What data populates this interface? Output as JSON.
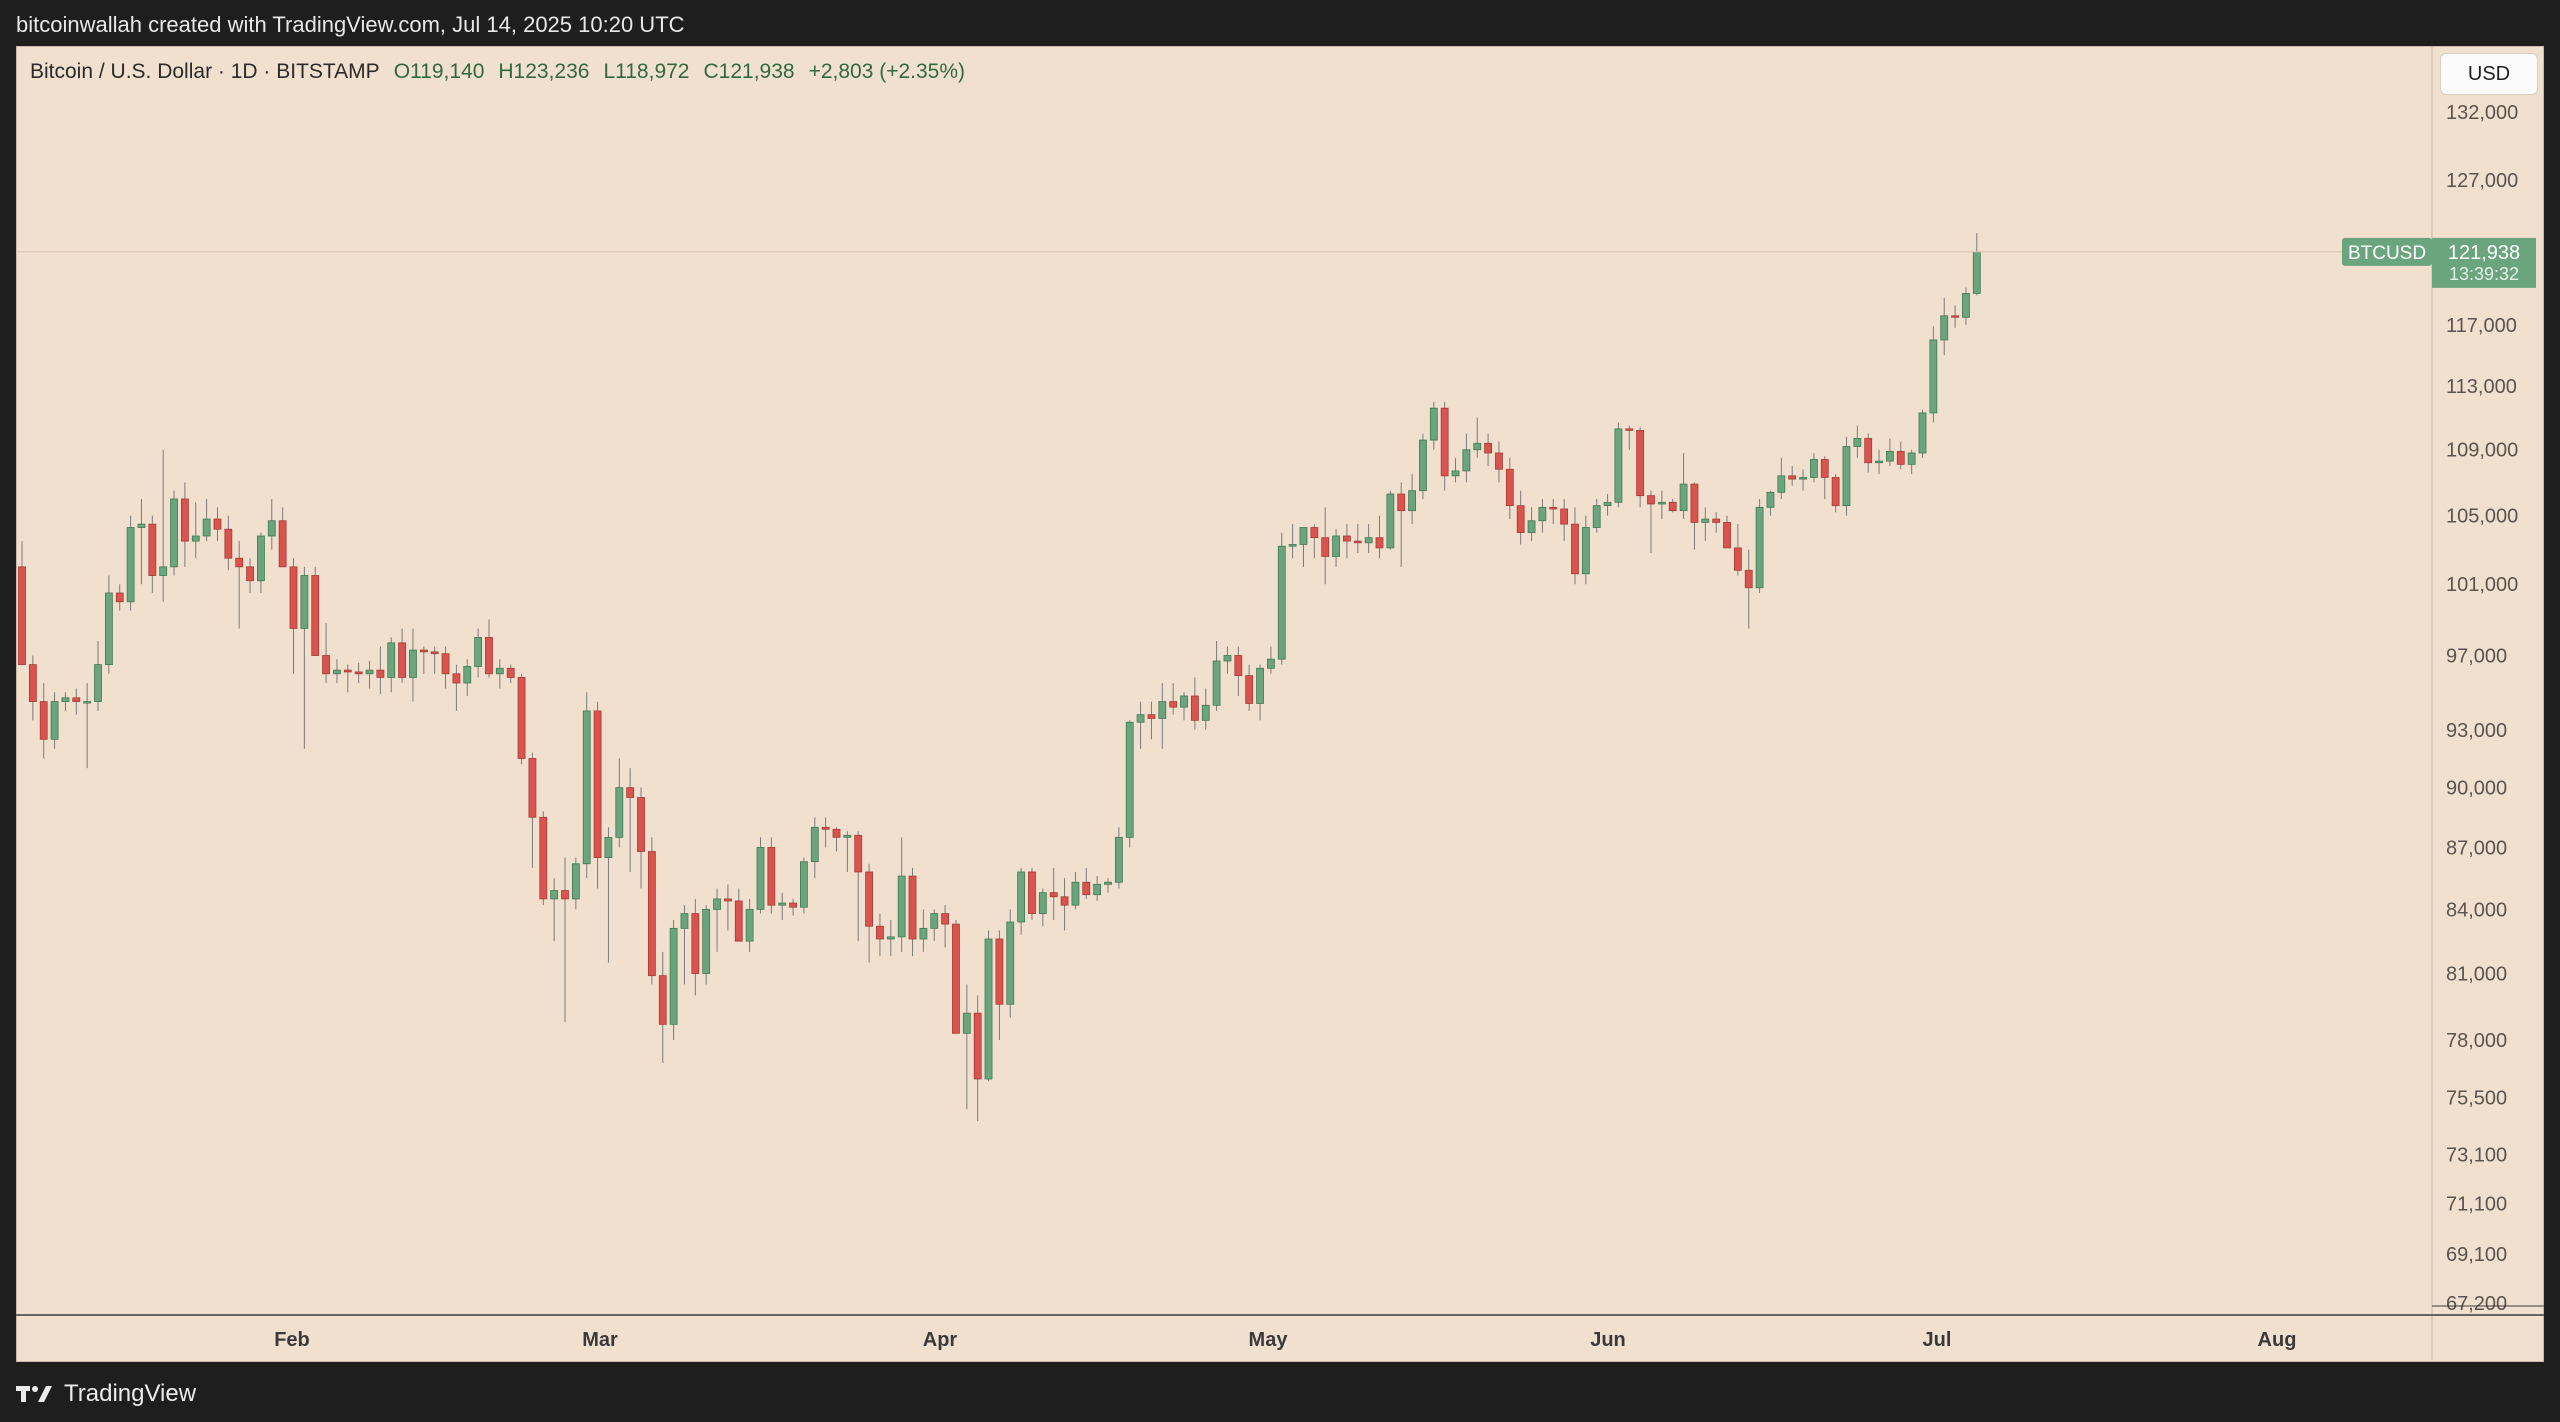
{
  "header": {
    "creator_text": "bitcoinwallah created with TradingView.com, Jul 14, 2025 10:20 UTC"
  },
  "symbol": {
    "title": "Bitcoin / U.S. Dollar · 1D · BITSTAMP",
    "open": "O119,140",
    "high": "H123,236",
    "low": "L118,972",
    "close": "C121,938",
    "change": "+2,803 (+2.35%)"
  },
  "currency_button": "USD",
  "price_label": {
    "symbol": "BTCUSD",
    "price": "121,938",
    "countdown": "13:39:32"
  },
  "footer": {
    "brand": "TradingView"
  },
  "colors": {
    "up": "#6aa57d",
    "down": "#d9544f",
    "background": "#f2e0cf"
  },
  "chart_data": {
    "type": "candlestick",
    "title": "Bitcoin / U.S. Dollar · 1D · BITSTAMP",
    "y_scale": "log",
    "ylim": [
      66500,
      134000
    ],
    "y_ticks": [
      132000,
      127000,
      117000,
      113000,
      109000,
      105000,
      101000,
      97000,
      93000,
      90000,
      87000,
      84000,
      81000,
      78000,
      75500,
      73100,
      71100,
      69100,
      67200
    ],
    "y_tick_labels": [
      "132,000",
      "127,000",
      "117,000",
      "113,000",
      "109,000",
      "105,000",
      "101,000",
      "97,000",
      "93,000",
      "90,000",
      "87,000",
      "84,000",
      "81,000",
      "78,000",
      "75,500",
      "73,100",
      "71,100",
      "69,100",
      "67,200"
    ],
    "x_labels": [
      "Feb",
      "Mar",
      "Apr",
      "May",
      "Jun",
      "Jul",
      "Aug"
    ],
    "candles": [
      {
        "o": 102000,
        "h": 103500,
        "l": 96500,
        "c": 96500
      },
      {
        "o": 96500,
        "h": 97000,
        "l": 93500,
        "c": 94500
      },
      {
        "o": 94500,
        "h": 95500,
        "l": 91500,
        "c": 92500
      },
      {
        "o": 92500,
        "h": 95000,
        "l": 92000,
        "c": 94500
      },
      {
        "o": 94500,
        "h": 95000,
        "l": 94000,
        "c": 94700
      },
      {
        "o": 94700,
        "h": 95200,
        "l": 93800,
        "c": 94500
      },
      {
        "o": 94500,
        "h": 95500,
        "l": 91000,
        "c": 94500
      },
      {
        "o": 94500,
        "h": 97800,
        "l": 94000,
        "c": 96500
      },
      {
        "o": 96500,
        "h": 101500,
        "l": 96000,
        "c": 100500
      },
      {
        "o": 100500,
        "h": 101000,
        "l": 99500,
        "c": 100000
      },
      {
        "o": 100000,
        "h": 105000,
        "l": 99500,
        "c": 104300
      },
      {
        "o": 104300,
        "h": 106000,
        "l": 101000,
        "c": 104500
      },
      {
        "o": 104500,
        "h": 105000,
        "l": 100500,
        "c": 101500
      },
      {
        "o": 101500,
        "h": 109000,
        "l": 100000,
        "c": 102000
      },
      {
        "o": 102000,
        "h": 106500,
        "l": 101500,
        "c": 106000
      },
      {
        "o": 106000,
        "h": 107000,
        "l": 102000,
        "c": 103500
      },
      {
        "o": 103500,
        "h": 105800,
        "l": 102500,
        "c": 103800
      },
      {
        "o": 103800,
        "h": 106000,
        "l": 103500,
        "c": 104800
      },
      {
        "o": 104800,
        "h": 105500,
        "l": 103500,
        "c": 104200
      },
      {
        "o": 104200,
        "h": 105000,
        "l": 101800,
        "c": 102500
      },
      {
        "o": 102500,
        "h": 103500,
        "l": 98500,
        "c": 102000
      },
      {
        "o": 102000,
        "h": 102500,
        "l": 100500,
        "c": 101200
      },
      {
        "o": 101200,
        "h": 104000,
        "l": 100500,
        "c": 103800
      },
      {
        "o": 103800,
        "h": 106000,
        "l": 103000,
        "c": 104700
      },
      {
        "o": 104700,
        "h": 105500,
        "l": 102000,
        "c": 102000
      },
      {
        "o": 102000,
        "h": 102500,
        "l": 96000,
        "c": 98500
      },
      {
        "o": 98500,
        "h": 102000,
        "l": 92000,
        "c": 101500
      },
      {
        "o": 101500,
        "h": 102000,
        "l": 97000,
        "c": 97000
      },
      {
        "o": 97000,
        "h": 98800,
        "l": 95500,
        "c": 96000
      },
      {
        "o": 96000,
        "h": 96800,
        "l": 95500,
        "c": 96200
      },
      {
        "o": 96200,
        "h": 96500,
        "l": 95000,
        "c": 96100
      },
      {
        "o": 96100,
        "h": 96600,
        "l": 95500,
        "c": 96000
      },
      {
        "o": 96000,
        "h": 96700,
        "l": 95200,
        "c": 96200
      },
      {
        "o": 96200,
        "h": 97500,
        "l": 94900,
        "c": 95800
      },
      {
        "o": 95800,
        "h": 98000,
        "l": 95000,
        "c": 97700
      },
      {
        "o": 97700,
        "h": 98500,
        "l": 95500,
        "c": 95800
      },
      {
        "o": 95800,
        "h": 98500,
        "l": 94500,
        "c": 97300
      },
      {
        "o": 97300,
        "h": 97500,
        "l": 96000,
        "c": 97200
      },
      {
        "o": 97200,
        "h": 97500,
        "l": 96000,
        "c": 97100
      },
      {
        "o": 97100,
        "h": 97500,
        "l": 95200,
        "c": 96000
      },
      {
        "o": 96000,
        "h": 96500,
        "l": 94000,
        "c": 95500
      },
      {
        "o": 95500,
        "h": 96800,
        "l": 94800,
        "c": 96400
      },
      {
        "o": 96400,
        "h": 98500,
        "l": 95800,
        "c": 98000
      },
      {
        "o": 98000,
        "h": 99000,
        "l": 95800,
        "c": 96000
      },
      {
        "o": 96000,
        "h": 96800,
        "l": 95200,
        "c": 96300
      },
      {
        "o": 96300,
        "h": 96500,
        "l": 95500,
        "c": 95800
      },
      {
        "o": 95800,
        "h": 96000,
        "l": 91200,
        "c": 91500
      },
      {
        "o": 91500,
        "h": 91800,
        "l": 86000,
        "c": 88500
      },
      {
        "o": 88500,
        "h": 88800,
        "l": 84200,
        "c": 84500
      },
      {
        "o": 84500,
        "h": 85500,
        "l": 82500,
        "c": 84900
      },
      {
        "o": 84900,
        "h": 86500,
        "l": 78800,
        "c": 84500
      },
      {
        "o": 84500,
        "h": 86500,
        "l": 84000,
        "c": 86200
      },
      {
        "o": 86200,
        "h": 95000,
        "l": 85500,
        "c": 94000
      },
      {
        "o": 94000,
        "h": 94500,
        "l": 85000,
        "c": 86500
      },
      {
        "o": 86500,
        "h": 88000,
        "l": 81500,
        "c": 87500
      },
      {
        "o": 87500,
        "h": 91500,
        "l": 87000,
        "c": 90000
      },
      {
        "o": 90000,
        "h": 91000,
        "l": 85800,
        "c": 89500
      },
      {
        "o": 89500,
        "h": 90000,
        "l": 85000,
        "c": 86800
      },
      {
        "o": 86800,
        "h": 87500,
        "l": 80500,
        "c": 80900
      },
      {
        "o": 80900,
        "h": 82000,
        "l": 77000,
        "c": 78700
      },
      {
        "o": 78700,
        "h": 83500,
        "l": 78000,
        "c": 83100
      },
      {
        "o": 83100,
        "h": 84200,
        "l": 80500,
        "c": 83800
      },
      {
        "o": 83800,
        "h": 84500,
        "l": 80000,
        "c": 81000
      },
      {
        "o": 81000,
        "h": 84200,
        "l": 80500,
        "c": 84000
      },
      {
        "o": 84000,
        "h": 85000,
        "l": 82000,
        "c": 84500
      },
      {
        "o": 84500,
        "h": 85200,
        "l": 83000,
        "c": 84400
      },
      {
        "o": 84400,
        "h": 85000,
        "l": 82800,
        "c": 82500
      },
      {
        "o": 82500,
        "h": 84500,
        "l": 82000,
        "c": 84000
      },
      {
        "o": 84000,
        "h": 87500,
        "l": 83800,
        "c": 87000
      },
      {
        "o": 87000,
        "h": 87500,
        "l": 83800,
        "c": 84200
      },
      {
        "o": 84200,
        "h": 84800,
        "l": 83500,
        "c": 84300
      },
      {
        "o": 84300,
        "h": 84500,
        "l": 83700,
        "c": 84100
      },
      {
        "o": 84100,
        "h": 86500,
        "l": 83800,
        "c": 86300
      },
      {
        "o": 86300,
        "h": 88500,
        "l": 85500,
        "c": 88000
      },
      {
        "o": 88000,
        "h": 88500,
        "l": 87000,
        "c": 87900
      },
      {
        "o": 87900,
        "h": 88000,
        "l": 86800,
        "c": 87500
      },
      {
        "o": 87500,
        "h": 87800,
        "l": 85800,
        "c": 87600
      },
      {
        "o": 87600,
        "h": 87800,
        "l": 82500,
        "c": 85800
      },
      {
        "o": 85800,
        "h": 86200,
        "l": 81500,
        "c": 83200
      },
      {
        "o": 83200,
        "h": 83800,
        "l": 81800,
        "c": 82600
      },
      {
        "o": 82600,
        "h": 83500,
        "l": 81800,
        "c": 82700
      },
      {
        "o": 82700,
        "h": 87500,
        "l": 82000,
        "c": 85600
      },
      {
        "o": 85600,
        "h": 86000,
        "l": 81800,
        "c": 82600
      },
      {
        "o": 82600,
        "h": 84000,
        "l": 82000,
        "c": 83100
      },
      {
        "o": 83100,
        "h": 84000,
        "l": 82500,
        "c": 83800
      },
      {
        "o": 83800,
        "h": 84200,
        "l": 82200,
        "c": 83300
      },
      {
        "o": 83300,
        "h": 83500,
        "l": 78500,
        "c": 78300
      },
      {
        "o": 78300,
        "h": 80500,
        "l": 75000,
        "c": 79200
      },
      {
        "o": 79200,
        "h": 80000,
        "l": 74500,
        "c": 76300
      },
      {
        "o": 76300,
        "h": 83000,
        "l": 76200,
        "c": 82600
      },
      {
        "o": 82600,
        "h": 83000,
        "l": 78000,
        "c": 79600
      },
      {
        "o": 79600,
        "h": 84000,
        "l": 79000,
        "c": 83400
      },
      {
        "o": 83400,
        "h": 86000,
        "l": 82800,
        "c": 85800
      },
      {
        "o": 85800,
        "h": 86000,
        "l": 83500,
        "c": 83800
      },
      {
        "o": 83800,
        "h": 85000,
        "l": 83200,
        "c": 84800
      },
      {
        "o": 84800,
        "h": 86000,
        "l": 83500,
        "c": 84600
      },
      {
        "o": 84600,
        "h": 85500,
        "l": 83000,
        "c": 84200
      },
      {
        "o": 84200,
        "h": 85800,
        "l": 84000,
        "c": 85300
      },
      {
        "o": 85300,
        "h": 86000,
        "l": 84500,
        "c": 84700
      },
      {
        "o": 84700,
        "h": 85600,
        "l": 84400,
        "c": 85200
      },
      {
        "o": 85200,
        "h": 85500,
        "l": 84800,
        "c": 85300
      },
      {
        "o": 85300,
        "h": 88000,
        "l": 85000,
        "c": 87500
      },
      {
        "o": 87500,
        "h": 93500,
        "l": 87000,
        "c": 93400
      },
      {
        "o": 93400,
        "h": 94500,
        "l": 92000,
        "c": 93800
      },
      {
        "o": 93800,
        "h": 94500,
        "l": 92500,
        "c": 93600
      },
      {
        "o": 93600,
        "h": 95500,
        "l": 92000,
        "c": 94500
      },
      {
        "o": 94500,
        "h": 95500,
        "l": 93800,
        "c": 94200
      },
      {
        "o": 94200,
        "h": 95000,
        "l": 93500,
        "c": 94800
      },
      {
        "o": 94800,
        "h": 95800,
        "l": 93000,
        "c": 93500
      },
      {
        "o": 93500,
        "h": 95200,
        "l": 93000,
        "c": 94300
      },
      {
        "o": 94300,
        "h": 97800,
        "l": 94000,
        "c": 96700
      },
      {
        "o": 96700,
        "h": 97500,
        "l": 96000,
        "c": 97000
      },
      {
        "o": 97000,
        "h": 97500,
        "l": 94800,
        "c": 95900
      },
      {
        "o": 95900,
        "h": 96500,
        "l": 94000,
        "c": 94400
      },
      {
        "o": 94400,
        "h": 96500,
        "l": 93500,
        "c": 96300
      },
      {
        "o": 96300,
        "h": 97500,
        "l": 96000,
        "c": 96800
      },
      {
        "o": 96800,
        "h": 104000,
        "l": 96500,
        "c": 103200
      },
      {
        "o": 103200,
        "h": 104500,
        "l": 102500,
        "c": 103300
      },
      {
        "o": 103300,
        "h": 104200,
        "l": 102000,
        "c": 104300
      },
      {
        "o": 104300,
        "h": 104500,
        "l": 102500,
        "c": 103700
      },
      {
        "o": 103700,
        "h": 105500,
        "l": 101000,
        "c": 102600
      },
      {
        "o": 102600,
        "h": 104200,
        "l": 102000,
        "c": 103800
      },
      {
        "o": 103800,
        "h": 104500,
        "l": 102500,
        "c": 103500
      },
      {
        "o": 103500,
        "h": 104500,
        "l": 102800,
        "c": 103400
      },
      {
        "o": 103400,
        "h": 104500,
        "l": 102800,
        "c": 103700
      },
      {
        "o": 103700,
        "h": 105000,
        "l": 102500,
        "c": 103100
      },
      {
        "o": 103100,
        "h": 106500,
        "l": 103000,
        "c": 106300
      },
      {
        "o": 106300,
        "h": 107000,
        "l": 102000,
        "c": 105300
      },
      {
        "o": 105300,
        "h": 107500,
        "l": 104500,
        "c": 106500
      },
      {
        "o": 106500,
        "h": 110000,
        "l": 106000,
        "c": 109600
      },
      {
        "o": 109600,
        "h": 112000,
        "l": 109000,
        "c": 111600
      },
      {
        "o": 111600,
        "h": 112000,
        "l": 106500,
        "c": 107400
      },
      {
        "o": 107400,
        "h": 108500,
        "l": 107000,
        "c": 107700
      },
      {
        "o": 107700,
        "h": 110000,
        "l": 107000,
        "c": 109000
      },
      {
        "o": 109000,
        "h": 111000,
        "l": 108500,
        "c": 109400
      },
      {
        "o": 109400,
        "h": 110000,
        "l": 108000,
        "c": 108800
      },
      {
        "o": 108800,
        "h": 109500,
        "l": 107000,
        "c": 107800
      },
      {
        "o": 107800,
        "h": 108500,
        "l": 104800,
        "c": 105600
      },
      {
        "o": 105600,
        "h": 106500,
        "l": 103300,
        "c": 104000
      },
      {
        "o": 104000,
        "h": 105500,
        "l": 103500,
        "c": 104700
      },
      {
        "o": 104700,
        "h": 106000,
        "l": 104000,
        "c": 105500
      },
      {
        "o": 105500,
        "h": 106000,
        "l": 104500,
        "c": 105400
      },
      {
        "o": 105400,
        "h": 106000,
        "l": 103500,
        "c": 104500
      },
      {
        "o": 104500,
        "h": 105500,
        "l": 101000,
        "c": 101600
      },
      {
        "o": 101600,
        "h": 105000,
        "l": 101000,
        "c": 104300
      },
      {
        "o": 104300,
        "h": 106000,
        "l": 104000,
        "c": 105600
      },
      {
        "o": 105600,
        "h": 106300,
        "l": 105000,
        "c": 105800
      },
      {
        "o": 105800,
        "h": 110700,
        "l": 105500,
        "c": 110300
      },
      {
        "o": 110300,
        "h": 110500,
        "l": 109000,
        "c": 110200
      },
      {
        "o": 110200,
        "h": 110400,
        "l": 105500,
        "c": 106200
      },
      {
        "o": 106200,
        "h": 106500,
        "l": 102800,
        "c": 105700
      },
      {
        "o": 105700,
        "h": 106500,
        "l": 104800,
        "c": 105800
      },
      {
        "o": 105800,
        "h": 106000,
        "l": 105200,
        "c": 105300
      },
      {
        "o": 105300,
        "h": 108800,
        "l": 104800,
        "c": 106900
      },
      {
        "o": 106900,
        "h": 107000,
        "l": 103000,
        "c": 104600
      },
      {
        "o": 104600,
        "h": 105500,
        "l": 103500,
        "c": 104800
      },
      {
        "o": 104800,
        "h": 105200,
        "l": 104000,
        "c": 104600
      },
      {
        "o": 104600,
        "h": 105000,
        "l": 103500,
        "c": 103100
      },
      {
        "o": 103100,
        "h": 104500,
        "l": 101500,
        "c": 101800
      },
      {
        "o": 101800,
        "h": 103000,
        "l": 98500,
        "c": 100800
      },
      {
        "o": 100800,
        "h": 106000,
        "l": 100500,
        "c": 105500
      },
      {
        "o": 105500,
        "h": 106500,
        "l": 105000,
        "c": 106400
      },
      {
        "o": 106400,
        "h": 108500,
        "l": 106000,
        "c": 107400
      },
      {
        "o": 107400,
        "h": 108000,
        "l": 106800,
        "c": 107200
      },
      {
        "o": 107200,
        "h": 107800,
        "l": 106500,
        "c": 107300
      },
      {
        "o": 107300,
        "h": 108800,
        "l": 107000,
        "c": 108400
      },
      {
        "o": 108400,
        "h": 108600,
        "l": 106000,
        "c": 107300
      },
      {
        "o": 107300,
        "h": 107500,
        "l": 105200,
        "c": 105600
      },
      {
        "o": 105600,
        "h": 109800,
        "l": 105000,
        "c": 109200
      },
      {
        "o": 109200,
        "h": 110500,
        "l": 108500,
        "c": 109700
      },
      {
        "o": 109700,
        "h": 110000,
        "l": 107600,
        "c": 108200
      },
      {
        "o": 108200,
        "h": 109000,
        "l": 107500,
        "c": 108300
      },
      {
        "o": 108300,
        "h": 109700,
        "l": 108000,
        "c": 108900
      },
      {
        "o": 108900,
        "h": 109500,
        "l": 107800,
        "c": 108100
      },
      {
        "o": 108100,
        "h": 109000,
        "l": 107500,
        "c": 108800
      },
      {
        "o": 108800,
        "h": 111500,
        "l": 108500,
        "c": 111300
      },
      {
        "o": 111300,
        "h": 116900,
        "l": 110700,
        "c": 116000
      },
      {
        "o": 116000,
        "h": 118800,
        "l": 115000,
        "c": 117600
      },
      {
        "o": 117600,
        "h": 118300,
        "l": 116800,
        "c": 117500
      },
      {
        "o": 117500,
        "h": 119500,
        "l": 117000,
        "c": 119100
      },
      {
        "o": 119100,
        "h": 123236,
        "l": 118972,
        "c": 121938
      }
    ]
  }
}
